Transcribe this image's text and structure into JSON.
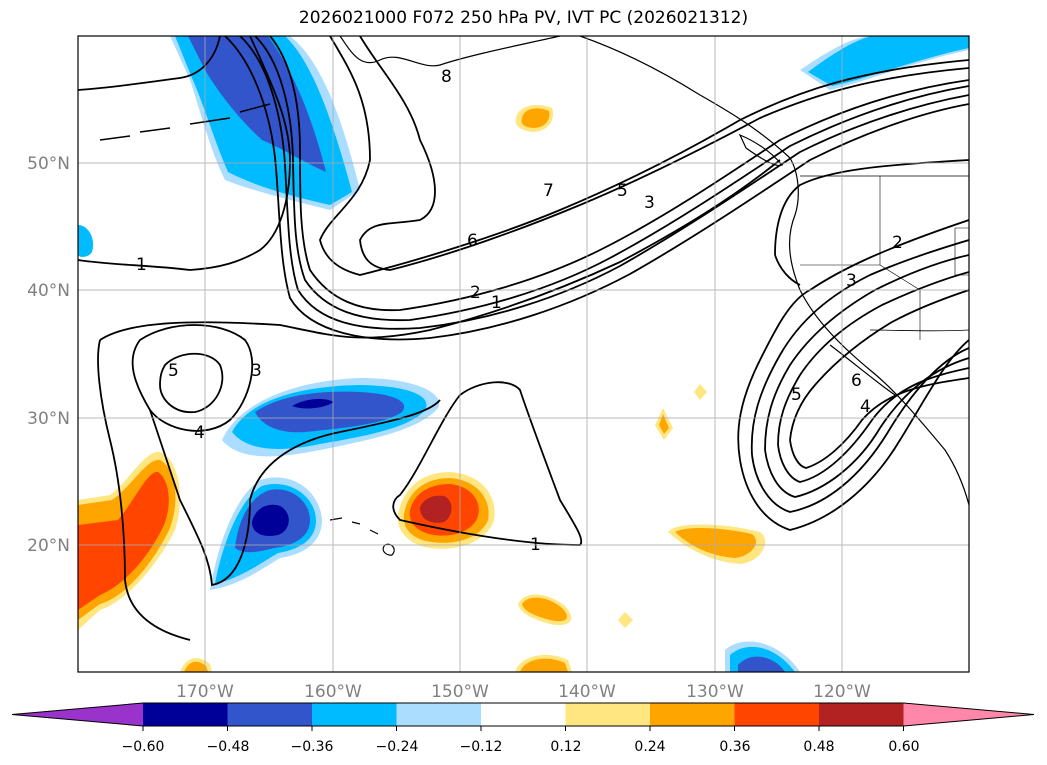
{
  "title": "2026021000 F072 250 hPa PV, IVT PC (2026021312)",
  "map": {
    "lon_labels": [
      "170°W",
      "160°W",
      "150°W",
      "140°W",
      "130°W",
      "120°W"
    ],
    "lat_labels": [
      "50°N",
      "40°N",
      "30°N",
      "20°N"
    ],
    "contour_labels": [
      "8",
      "7",
      "5",
      "3",
      "6",
      "2",
      "1",
      "1",
      "5",
      "3",
      "4",
      "1",
      "2",
      "3",
      "6",
      "4",
      "5"
    ]
  },
  "colorbar": {
    "ticks": [
      "−0.60",
      "−0.48",
      "−0.36",
      "−0.24",
      "−0.12",
      "0.12",
      "0.24",
      "0.36",
      "0.48",
      "0.60"
    ],
    "colors": [
      "#9933cc",
      "#000099",
      "#3355cc",
      "#00bbff",
      "#aaddff",
      "#ffffff",
      "#ffe680",
      "#ffa500",
      "#ff4500",
      "#b22222",
      "#ff88aa"
    ]
  },
  "colors": {
    "deep_blue": "#000099",
    "mid_blue": "#3355cc",
    "cyan": "#00bbff",
    "light_blue": "#aaddff",
    "light_yellow": "#ffe680",
    "orange": "#ffa500",
    "red_orange": "#ff4500",
    "dark_red": "#b22222"
  }
}
